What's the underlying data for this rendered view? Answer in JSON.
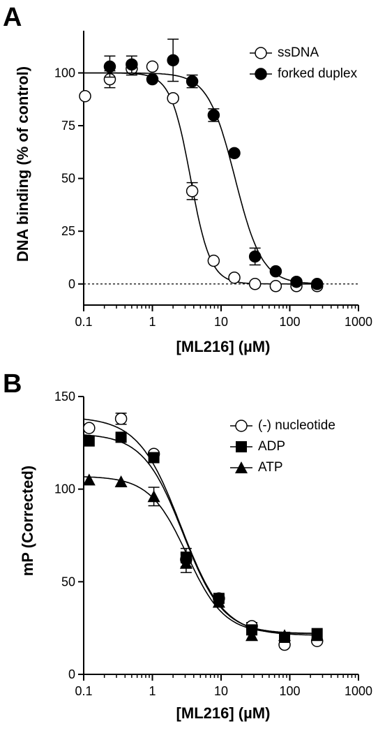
{
  "panels": {
    "a": {
      "letter": "A"
    },
    "b": {
      "letter": "B"
    }
  },
  "chart_data": [
    {
      "type": "scatter",
      "panel": "A",
      "xlabel": "[ML216] (µM)",
      "ylabel": "DNA binding (% of control)",
      "xscale": "log",
      "xlim": [
        0.1,
        1000
      ],
      "ylim": [
        -10,
        120
      ],
      "xticks": [
        "0.1",
        "1",
        "10",
        "100",
        "1000"
      ],
      "yticks": [
        "0",
        "25",
        "50",
        "75",
        "100"
      ],
      "reference_line": {
        "y": 0,
        "style": "dotted"
      },
      "legend_position": "top-right",
      "series": [
        {
          "name": "ssDNA",
          "marker": "open-circle",
          "x": [
            0.1,
            0.24,
            0.5,
            1.0,
            2.0,
            3.8,
            7.8,
            15.6,
            31.2,
            62.5,
            125,
            250
          ],
          "y": [
            89,
            97,
            102,
            103,
            88,
            44,
            11,
            3,
            0,
            -1,
            -1,
            -1
          ],
          "err": [
            0,
            4,
            3,
            0,
            0,
            4,
            0,
            0,
            0,
            0,
            0,
            0
          ],
          "fit": {
            "top": 100,
            "bottom": 0,
            "ic50": 3.6,
            "hill": 3.0
          }
        },
        {
          "name": "forked duplex",
          "marker": "filled-circle",
          "x": [
            0.24,
            0.5,
            1.0,
            2.0,
            3.8,
            7.8,
            15.6,
            31.2,
            62.5,
            125,
            250
          ],
          "y": [
            103,
            104,
            97,
            106,
            96,
            80,
            62,
            13,
            6,
            1,
            0
          ],
          "err": [
            5,
            4,
            0,
            10,
            3,
            3,
            0,
            4,
            0,
            0,
            0
          ],
          "fit": {
            "top": 100,
            "bottom": 0,
            "ic50": 16,
            "hill": 2.2
          }
        }
      ]
    },
    {
      "type": "scatter",
      "panel": "B",
      "xlabel": "[ML216] (µM)",
      "ylabel": "mP (Corrected)",
      "xscale": "log",
      "xlim": [
        0.1,
        1000
      ],
      "ylim": [
        0,
        150
      ],
      "xticks": [
        "0.1",
        "1",
        "10",
        "100",
        "1000"
      ],
      "yticks": [
        "0",
        "50",
        "100",
        "150"
      ],
      "legend_position": "top-right",
      "series": [
        {
          "name": "(-) nucleotide",
          "marker": "open-circle",
          "x": [
            0.12,
            0.35,
            1.05,
            3.1,
            9.3,
            28,
            84,
            250
          ],
          "y": [
            133,
            138,
            119,
            62,
            41,
            26,
            16,
            18
          ],
          "err": [
            0,
            3,
            0,
            4,
            2,
            2,
            0,
            0
          ],
          "fit": {
            "top": 139,
            "bottom": 21,
            "ic50": 2.6,
            "hill": 1.4
          }
        },
        {
          "name": "ADP",
          "marker": "filled-square",
          "x": [
            0.12,
            0.35,
            1.05,
            3.1,
            9.3,
            28,
            84,
            250
          ],
          "y": [
            126,
            128,
            117,
            63,
            41,
            24,
            20,
            22
          ],
          "err": [
            0,
            0,
            0,
            5,
            0,
            0,
            0,
            0
          ],
          "fit": {
            "top": 130,
            "bottom": 22,
            "ic50": 2.8,
            "hill": 1.5
          }
        },
        {
          "name": "ATP",
          "marker": "filled-triangle",
          "x": [
            0.12,
            0.35,
            1.05,
            3.1,
            9.3,
            28,
            84,
            250
          ],
          "y": [
            105,
            104,
            96,
            60,
            39,
            21,
            21,
            21
          ],
          "err": [
            0,
            0,
            5,
            5,
            0,
            0,
            0,
            0
          ],
          "fit": {
            "top": 107,
            "bottom": 22,
            "ic50": 3.2,
            "hill": 1.6
          }
        }
      ]
    }
  ]
}
